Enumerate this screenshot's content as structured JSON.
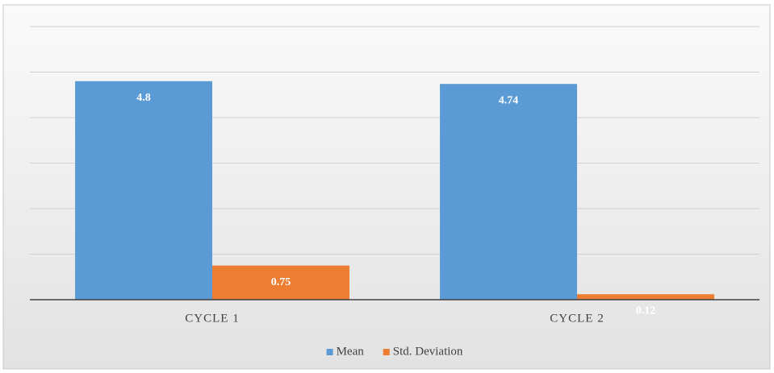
{
  "chart_data": {
    "type": "bar",
    "categories": [
      "CYCLE 1",
      "CYCLE 2"
    ],
    "series": [
      {
        "name": "Mean",
        "color": "#5b9bd5",
        "values": [
          4.8,
          4.74
        ]
      },
      {
        "name": "Std. Deviation",
        "color": "#ed7d31",
        "values": [
          0.75,
          0.12
        ]
      }
    ],
    "ylim": [
      0,
      6
    ],
    "yticks": [
      0,
      1,
      2,
      3,
      4,
      5,
      6
    ],
    "grid": true,
    "legend": "bottom"
  }
}
